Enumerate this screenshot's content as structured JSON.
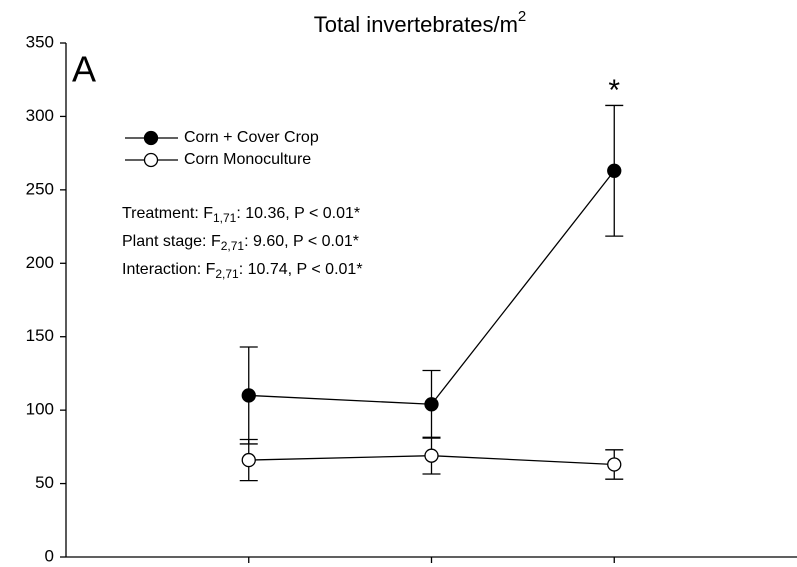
{
  "chart_data": {
    "type": "line",
    "title": "Total invertebrates/m",
    "title_superscript": "2",
    "panel_label": "A",
    "x": [
      1,
      2,
      3
    ],
    "xlim": [
      0,
      4
    ],
    "ylim": [
      0,
      350
    ],
    "yticks": [
      0,
      50,
      100,
      150,
      200,
      250,
      300,
      350
    ],
    "legend": "upper left",
    "series": [
      {
        "name": "Corn + Cover Crop",
        "color": "#000000",
        "marker": "filled",
        "values": [
          110,
          104,
          263
        ],
        "errors": [
          33,
          23,
          44.5
        ]
      },
      {
        "name": "Corn Monoculture",
        "color": "#000000",
        "marker": "open",
        "values": [
          66,
          69,
          63
        ],
        "errors": [
          14,
          12.5,
          10
        ]
      }
    ],
    "significance": [
      {
        "x": 3,
        "label": "*"
      }
    ],
    "statistics": [
      {
        "text": "Treatment: F",
        "sub": "1,71",
        "rest": ": 10.36, P < 0.01*"
      },
      {
        "text": "Plant stage: F",
        "sub": "2,71",
        "rest": ": 9.60, P < 0.01*"
      },
      {
        "text": "Interaction: F",
        "sub": "2,71",
        "rest": ": 10.74, P < 0.01*"
      }
    ]
  }
}
